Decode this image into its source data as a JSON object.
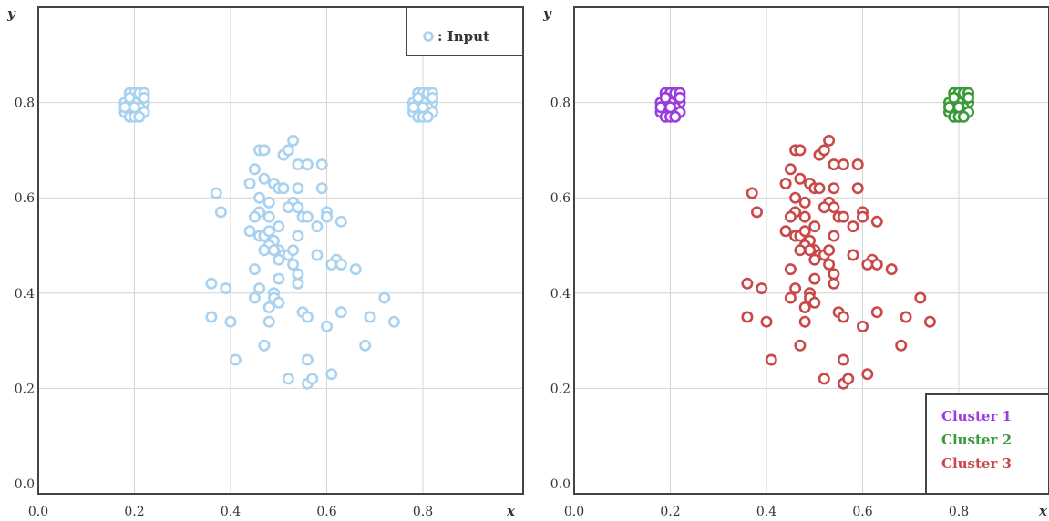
{
  "chart_data": [
    {
      "type": "scatter",
      "xlabel": "x",
      "ylabel": "y",
      "xlim": [
        0,
        1
      ],
      "ylim": [
        0,
        1
      ],
      "xticks": [
        "0.0",
        "0.2",
        "0.4",
        "0.6",
        "0.8"
      ],
      "yticks": [
        "0.0",
        "0.2",
        "0.4",
        "0.6",
        "0.8"
      ],
      "grid": true,
      "legend_position": "top-right",
      "series": [
        {
          "name": ": Input",
          "color": "#a9d2f0",
          "points": [
            [
              0.18,
              0.8
            ],
            [
              0.19,
              0.82
            ],
            [
              0.2,
              0.82
            ],
            [
              0.21,
              0.81
            ],
            [
              0.22,
              0.8
            ],
            [
              0.18,
              0.78
            ],
            [
              0.19,
              0.79
            ],
            [
              0.2,
              0.78
            ],
            [
              0.21,
              0.79
            ],
            [
              0.22,
              0.78
            ],
            [
              0.19,
              0.77
            ],
            [
              0.2,
              0.77
            ],
            [
              0.21,
              0.77
            ],
            [
              0.2,
              0.8
            ],
            [
              0.19,
              0.81
            ],
            [
              0.21,
              0.82
            ],
            [
              0.22,
              0.82
            ],
            [
              0.18,
              0.79
            ],
            [
              0.2,
              0.79
            ],
            [
              0.22,
              0.81
            ],
            [
              0.78,
              0.8
            ],
            [
              0.79,
              0.82
            ],
            [
              0.8,
              0.82
            ],
            [
              0.81,
              0.81
            ],
            [
              0.82,
              0.8
            ],
            [
              0.78,
              0.78
            ],
            [
              0.79,
              0.79
            ],
            [
              0.8,
              0.78
            ],
            [
              0.81,
              0.79
            ],
            [
              0.82,
              0.78
            ],
            [
              0.79,
              0.77
            ],
            [
              0.8,
              0.77
            ],
            [
              0.81,
              0.77
            ],
            [
              0.8,
              0.8
            ],
            [
              0.79,
              0.81
            ],
            [
              0.81,
              0.82
            ],
            [
              0.82,
              0.82
            ],
            [
              0.78,
              0.79
            ],
            [
              0.8,
              0.79
            ],
            [
              0.82,
              0.81
            ],
            [
              0.53,
              0.72
            ],
            [
              0.46,
              0.7
            ],
            [
              0.47,
              0.7
            ],
            [
              0.51,
              0.69
            ],
            [
              0.52,
              0.7
            ],
            [
              0.54,
              0.67
            ],
            [
              0.56,
              0.67
            ],
            [
              0.59,
              0.67
            ],
            [
              0.45,
              0.66
            ],
            [
              0.47,
              0.64
            ],
            [
              0.44,
              0.63
            ],
            [
              0.49,
              0.63
            ],
            [
              0.5,
              0.62
            ],
            [
              0.51,
              0.62
            ],
            [
              0.54,
              0.62
            ],
            [
              0.59,
              0.62
            ],
            [
              0.37,
              0.61
            ],
            [
              0.46,
              0.6
            ],
            [
              0.48,
              0.59
            ],
            [
              0.53,
              0.59
            ],
            [
              0.38,
              0.57
            ],
            [
              0.46,
              0.57
            ],
            [
              0.45,
              0.56
            ],
            [
              0.48,
              0.56
            ],
            [
              0.52,
              0.58
            ],
            [
              0.54,
              0.58
            ],
            [
              0.55,
              0.56
            ],
            [
              0.56,
              0.56
            ],
            [
              0.6,
              0.57
            ],
            [
              0.6,
              0.56
            ],
            [
              0.63,
              0.55
            ],
            [
              0.58,
              0.54
            ],
            [
              0.5,
              0.54
            ],
            [
              0.44,
              0.53
            ],
            [
              0.46,
              0.52
            ],
            [
              0.47,
              0.52
            ],
            [
              0.48,
              0.53
            ],
            [
              0.49,
              0.51
            ],
            [
              0.54,
              0.52
            ],
            [
              0.48,
              0.5
            ],
            [
              0.5,
              0.49
            ],
            [
              0.51,
              0.48
            ],
            [
              0.52,
              0.48
            ],
            [
              0.5,
              0.47
            ],
            [
              0.49,
              0.49
            ],
            [
              0.53,
              0.49
            ],
            [
              0.47,
              0.49
            ],
            [
              0.58,
              0.48
            ],
            [
              0.62,
              0.47
            ],
            [
              0.61,
              0.46
            ],
            [
              0.63,
              0.46
            ],
            [
              0.53,
              0.46
            ],
            [
              0.66,
              0.45
            ],
            [
              0.45,
              0.45
            ],
            [
              0.54,
              0.44
            ],
            [
              0.5,
              0.43
            ],
            [
              0.54,
              0.42
            ],
            [
              0.36,
              0.42
            ],
            [
              0.39,
              0.41
            ],
            [
              0.46,
              0.41
            ],
            [
              0.49,
              0.4
            ],
            [
              0.45,
              0.39
            ],
            [
              0.49,
              0.39
            ],
            [
              0.5,
              0.38
            ],
            [
              0.72,
              0.39
            ],
            [
              0.48,
              0.37
            ],
            [
              0.55,
              0.36
            ],
            [
              0.56,
              0.35
            ],
            [
              0.6,
              0.33
            ],
            [
              0.63,
              0.36
            ],
            [
              0.36,
              0.35
            ],
            [
              0.4,
              0.34
            ],
            [
              0.48,
              0.34
            ],
            [
              0.69,
              0.35
            ],
            [
              0.74,
              0.34
            ],
            [
              0.68,
              0.29
            ],
            [
              0.47,
              0.29
            ],
            [
              0.41,
              0.26
            ],
            [
              0.56,
              0.26
            ],
            [
              0.52,
              0.22
            ],
            [
              0.56,
              0.21
            ],
            [
              0.57,
              0.22
            ],
            [
              0.61,
              0.23
            ]
          ]
        }
      ]
    },
    {
      "type": "scatter",
      "xlabel": "x",
      "ylabel": "y",
      "xlim": [
        0,
        1
      ],
      "ylim": [
        0,
        1
      ],
      "xticks": [
        "0.0",
        "0.2",
        "0.4",
        "0.6",
        "0.8"
      ],
      "yticks": [
        "0.0",
        "0.2",
        "0.4",
        "0.6",
        "0.8"
      ],
      "grid": true,
      "legend_position": "bottom-right",
      "series": [
        {
          "name": "Cluster 1",
          "color": "#9b3ddd",
          "points": [
            [
              0.18,
              0.8
            ],
            [
              0.19,
              0.82
            ],
            [
              0.2,
              0.82
            ],
            [
              0.21,
              0.81
            ],
            [
              0.22,
              0.8
            ],
            [
              0.18,
              0.78
            ],
            [
              0.19,
              0.79
            ],
            [
              0.2,
              0.78
            ],
            [
              0.21,
              0.79
            ],
            [
              0.22,
              0.78
            ],
            [
              0.19,
              0.77
            ],
            [
              0.2,
              0.77
            ],
            [
              0.21,
              0.77
            ],
            [
              0.2,
              0.8
            ],
            [
              0.19,
              0.81
            ],
            [
              0.21,
              0.82
            ],
            [
              0.22,
              0.82
            ],
            [
              0.18,
              0.79
            ],
            [
              0.2,
              0.79
            ],
            [
              0.22,
              0.81
            ]
          ]
        },
        {
          "name": "Cluster 2",
          "color": "#3a9a3a",
          "points": [
            [
              0.78,
              0.8
            ],
            [
              0.79,
              0.82
            ],
            [
              0.8,
              0.82
            ],
            [
              0.81,
              0.81
            ],
            [
              0.82,
              0.8
            ],
            [
              0.78,
              0.78
            ],
            [
              0.79,
              0.79
            ],
            [
              0.8,
              0.78
            ],
            [
              0.81,
              0.79
            ],
            [
              0.82,
              0.78
            ],
            [
              0.79,
              0.77
            ],
            [
              0.8,
              0.77
            ],
            [
              0.81,
              0.77
            ],
            [
              0.8,
              0.8
            ],
            [
              0.79,
              0.81
            ],
            [
              0.81,
              0.82
            ],
            [
              0.82,
              0.82
            ],
            [
              0.78,
              0.79
            ],
            [
              0.8,
              0.79
            ],
            [
              0.82,
              0.81
            ]
          ]
        },
        {
          "name": "Cluster 3",
          "color": "#c94848",
          "points": [
            [
              0.53,
              0.72
            ],
            [
              0.46,
              0.7
            ],
            [
              0.47,
              0.7
            ],
            [
              0.51,
              0.69
            ],
            [
              0.52,
              0.7
            ],
            [
              0.54,
              0.67
            ],
            [
              0.56,
              0.67
            ],
            [
              0.59,
              0.67
            ],
            [
              0.45,
              0.66
            ],
            [
              0.47,
              0.64
            ],
            [
              0.44,
              0.63
            ],
            [
              0.49,
              0.63
            ],
            [
              0.5,
              0.62
            ],
            [
              0.51,
              0.62
            ],
            [
              0.54,
              0.62
            ],
            [
              0.59,
              0.62
            ],
            [
              0.37,
              0.61
            ],
            [
              0.46,
              0.6
            ],
            [
              0.48,
              0.59
            ],
            [
              0.53,
              0.59
            ],
            [
              0.38,
              0.57
            ],
            [
              0.46,
              0.57
            ],
            [
              0.45,
              0.56
            ],
            [
              0.48,
              0.56
            ],
            [
              0.52,
              0.58
            ],
            [
              0.54,
              0.58
            ],
            [
              0.55,
              0.56
            ],
            [
              0.56,
              0.56
            ],
            [
              0.6,
              0.57
            ],
            [
              0.6,
              0.56
            ],
            [
              0.63,
              0.55
            ],
            [
              0.58,
              0.54
            ],
            [
              0.5,
              0.54
            ],
            [
              0.44,
              0.53
            ],
            [
              0.46,
              0.52
            ],
            [
              0.47,
              0.52
            ],
            [
              0.48,
              0.53
            ],
            [
              0.49,
              0.51
            ],
            [
              0.54,
              0.52
            ],
            [
              0.48,
              0.5
            ],
            [
              0.5,
              0.49
            ],
            [
              0.51,
              0.48
            ],
            [
              0.52,
              0.48
            ],
            [
              0.5,
              0.47
            ],
            [
              0.49,
              0.49
            ],
            [
              0.53,
              0.49
            ],
            [
              0.47,
              0.49
            ],
            [
              0.58,
              0.48
            ],
            [
              0.62,
              0.47
            ],
            [
              0.61,
              0.46
            ],
            [
              0.63,
              0.46
            ],
            [
              0.53,
              0.46
            ],
            [
              0.66,
              0.45
            ],
            [
              0.45,
              0.45
            ],
            [
              0.54,
              0.44
            ],
            [
              0.5,
              0.43
            ],
            [
              0.54,
              0.42
            ],
            [
              0.36,
              0.42
            ],
            [
              0.39,
              0.41
            ],
            [
              0.46,
              0.41
            ],
            [
              0.49,
              0.4
            ],
            [
              0.45,
              0.39
            ],
            [
              0.49,
              0.39
            ],
            [
              0.5,
              0.38
            ],
            [
              0.72,
              0.39
            ],
            [
              0.48,
              0.37
            ],
            [
              0.55,
              0.36
            ],
            [
              0.56,
              0.35
            ],
            [
              0.6,
              0.33
            ],
            [
              0.63,
              0.36
            ],
            [
              0.36,
              0.35
            ],
            [
              0.4,
              0.34
            ],
            [
              0.48,
              0.34
            ],
            [
              0.69,
              0.35
            ],
            [
              0.74,
              0.34
            ],
            [
              0.68,
              0.29
            ],
            [
              0.47,
              0.29
            ],
            [
              0.41,
              0.26
            ],
            [
              0.56,
              0.26
            ],
            [
              0.52,
              0.22
            ],
            [
              0.56,
              0.21
            ],
            [
              0.57,
              0.22
            ],
            [
              0.61,
              0.23
            ]
          ]
        }
      ]
    }
  ]
}
